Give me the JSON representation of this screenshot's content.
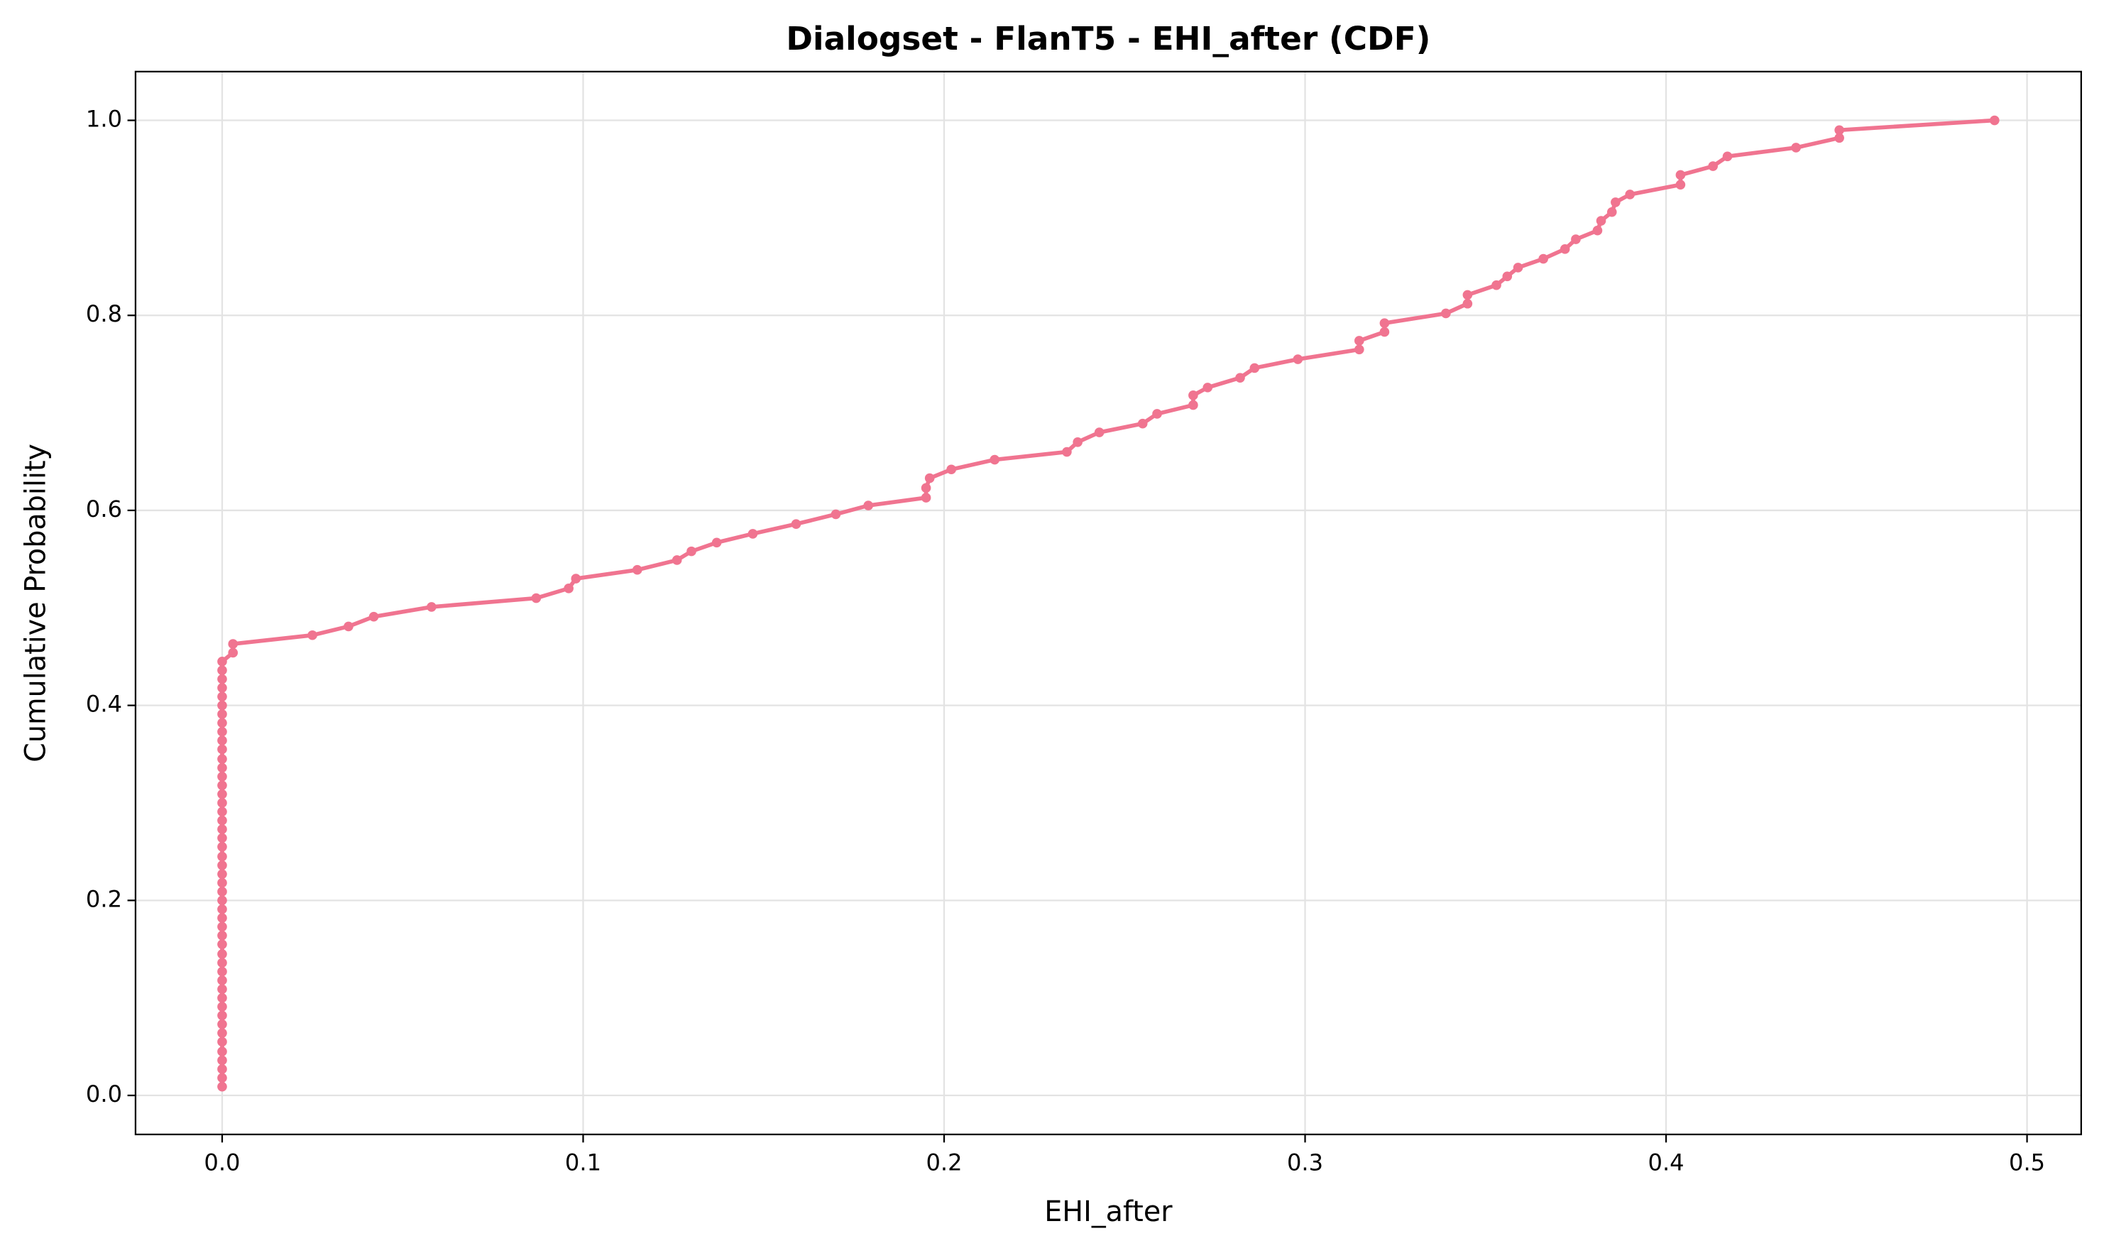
{
  "chart_data": {
    "type": "line",
    "title": "Dialogset - FlanT5 - EHI_after (CDF)",
    "x_label": "EHI_after",
    "y_label": "Cumulative Probability",
    "color": "#f07490",
    "grid": true,
    "x": [
      0,
      0,
      0,
      0,
      0,
      0,
      0,
      0,
      0,
      0,
      0,
      0,
      0,
      0,
      0,
      0,
      0,
      0,
      0,
      0,
      0,
      0,
      0,
      0,
      0,
      0,
      0,
      0,
      0,
      0,
      0,
      0,
      0,
      0,
      0,
      0,
      0,
      0,
      0,
      0,
      0,
      0,
      0,
      0,
      0,
      0,
      0,
      0,
      0,
      0.003,
      0.003,
      0.025,
      0.035,
      0.042,
      0.058,
      0.087,
      0.096,
      0.098,
      0.115,
      0.126,
      0.13,
      0.137,
      0.147,
      0.159,
      0.17,
      0.179,
      0.195,
      0.195,
      0.196,
      0.202,
      0.214,
      0.234,
      0.237,
      0.243,
      0.255,
      0.259,
      0.269,
      0.269,
      0.273,
      0.282,
      0.286,
      0.298,
      0.315,
      0.315,
      0.322,
      0.322,
      0.339,
      0.345,
      0.345,
      0.353,
      0.356,
      0.359,
      0.366,
      0.372,
      0.375,
      0.381,
      0.382,
      0.385,
      0.386,
      0.39,
      0.404,
      0.404,
      0.413,
      0.417,
      0.436,
      0.448,
      0.448,
      0.491
    ],
    "values": [
      0.009,
      0.018,
      0.027,
      0.036,
      0.045,
      0.055,
      0.064,
      0.073,
      0.082,
      0.091,
      0.1,
      0.109,
      0.118,
      0.127,
      0.136,
      0.145,
      0.155,
      0.164,
      0.173,
      0.182,
      0.191,
      0.2,
      0.209,
      0.218,
      0.227,
      0.236,
      0.245,
      0.255,
      0.264,
      0.273,
      0.282,
      0.291,
      0.3,
      0.309,
      0.318,
      0.327,
      0.336,
      0.345,
      0.355,
      0.364,
      0.373,
      0.382,
      0.391,
      0.4,
      0.409,
      0.418,
      0.427,
      0.436,
      0.445,
      0.454,
      0.463,
      0.472,
      0.481,
      0.491,
      0.501,
      0.51,
      0.52,
      0.53,
      0.539,
      0.549,
      0.558,
      0.567,
      0.576,
      0.586,
      0.596,
      0.605,
      0.613,
      0.623,
      0.633,
      0.642,
      0.652,
      0.66,
      0.67,
      0.68,
      0.689,
      0.699,
      0.708,
      0.718,
      0.726,
      0.736,
      0.746,
      0.755,
      0.765,
      0.774,
      0.783,
      0.792,
      0.802,
      0.812,
      0.821,
      0.831,
      0.84,
      0.849,
      0.858,
      0.868,
      0.878,
      0.887,
      0.897,
      0.906,
      0.916,
      0.924,
      0.934,
      0.944,
      0.953,
      0.963,
      0.972,
      0.982,
      0.99,
      1.0
    ],
    "xlim": [
      -0.024,
      0.515
    ],
    "ylim": [
      -0.04,
      1.05
    ],
    "xticks": [
      {
        "value": 0,
        "label": "0.0"
      },
      0.1,
      0.2,
      0.3,
      0.4,
      0.5
    ],
    "yticks": [
      {
        "value": 0,
        "label": "0.0"
      },
      0.2,
      0.4,
      0.6,
      0.8,
      {
        "value": 1,
        "label": "1.0"
      }
    ]
  }
}
